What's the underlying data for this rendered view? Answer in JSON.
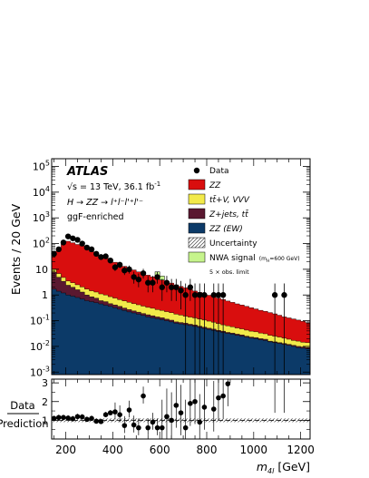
{
  "chart_data": {
    "type": "area",
    "xlabel_base": "m",
    "xlabel_sub": "4l",
    "xlabel_unit": "[GeV]",
    "ylabel": "Events / 20 GeV",
    "ratio_ylabel_top": "Data",
    "ratio_ylabel_bottom": "Prediction",
    "log_y": true,
    "xlim": [
      140,
      1240
    ],
    "ylim": [
      0.0008,
      200000
    ],
    "ratio_ylim": [
      0,
      3.2
    ],
    "x_ticks": [
      200,
      400,
      600,
      800,
      1000,
      1200
    ],
    "y_ticks": [
      {
        "v": 0.001,
        "label": "10",
        "exp": "-3"
      },
      {
        "v": 0.01,
        "label": "10",
        "exp": "-2"
      },
      {
        "v": 0.1,
        "label": "10",
        "exp": "-1"
      },
      {
        "v": 1,
        "label": "1",
        "exp": ""
      },
      {
        "v": 10,
        "label": "10",
        "exp": ""
      },
      {
        "v": 100,
        "label": "10",
        "exp": "2"
      },
      {
        "v": 1000,
        "label": "10",
        "exp": "3"
      },
      {
        "v": 10000,
        "label": "10",
        "exp": "4"
      },
      {
        "v": 100000,
        "label": "10",
        "exp": "5"
      }
    ],
    "ratio_y_ticks": [
      1,
      2,
      3
    ],
    "annotations": {
      "experiment": "ATLAS",
      "energy_prefix": "√s = 13 TeV, 36.1 fb",
      "energy_exp": "-1",
      "process": "H → ZZ → l⁺l⁻l'⁺l'⁻",
      "category": "ggF-enriched"
    },
    "legend": {
      "placement": "top-right",
      "data": "Data",
      "zz": "ZZ",
      "ttv": "tt̄+V, VVV",
      "zjets": "Z+jets, tt̄",
      "zzew": "ZZ (EW)",
      "uncertainty": "Uncertainty",
      "nwa": "NWA signal",
      "nwa_mass": "(m",
      "nwa_mass_sub": "H",
      "nwa_mass_end": "=600 GeV)",
      "nwa_limit": "5 × obs. limit"
    },
    "colors": {
      "zz": "#d90e0e",
      "ttv": "#f2ea4a",
      "zjets": "#5a1830",
      "zzew": "#0c3a68",
      "nwa": "#c6f48c",
      "data": "#000000"
    },
    "bin_edges": [
      140,
      160,
      180,
      200,
      220,
      240,
      260,
      280,
      300,
      320,
      340,
      360,
      380,
      400,
      420,
      440,
      460,
      480,
      500,
      520,
      540,
      560,
      580,
      600,
      620,
      640,
      660,
      680,
      700,
      720,
      740,
      760,
      780,
      800,
      820,
      840,
      860,
      880,
      900,
      920,
      940,
      960,
      980,
      1000,
      1020,
      1040,
      1060,
      1080,
      1100,
      1120,
      1140,
      1160,
      1180,
      1200,
      1220,
      1240
    ],
    "series": [
      {
        "name": "ZZ (EW)",
        "values": [
          1.7,
          1.4,
          1.2,
          1.0,
          0.9,
          0.8,
          0.7,
          0.6,
          0.55,
          0.5,
          0.45,
          0.4,
          0.36,
          0.32,
          0.28,
          0.25,
          0.22,
          0.2,
          0.18,
          0.16,
          0.14,
          0.13,
          0.12,
          0.11,
          0.1,
          0.09,
          0.08,
          0.075,
          0.07,
          0.065,
          0.06,
          0.055,
          0.05,
          0.046,
          0.042,
          0.038,
          0.035,
          0.032,
          0.03,
          0.027,
          0.025,
          0.023,
          0.021,
          0.02,
          0.018,
          0.017,
          0.015,
          0.014,
          0.013,
          0.012,
          0.011,
          0.01,
          0.009,
          0.0085,
          0.008
        ]
      },
      {
        "name": "Z+jets, tt̄",
        "values": [
          6.0,
          3.5,
          2.2,
          1.4,
          1.1,
          0.8,
          0.6,
          0.4,
          0.3,
          0.25,
          0.15,
          0.15,
          0.1,
          0.09,
          0.08,
          0.06,
          0.05,
          0.04,
          0.035,
          0.03,
          0.03,
          0.025,
          0.02,
          0.02,
          0.015,
          0.015,
          0.01,
          0.01,
          0.01,
          0.008,
          0.008,
          0.006,
          0.006,
          0.005,
          0.005,
          0.004,
          0.004,
          0.003,
          0.003,
          0.003,
          0.003,
          0.002,
          0.002,
          0.002,
          0.002,
          0.002,
          0.001,
          0.001,
          0.001,
          0.001,
          0.001,
          0.001,
          0.001,
          0.001,
          0.001
        ]
      },
      {
        "name": "tt̄+V, VVV",
        "values": [
          2.5,
          1.9,
          1.4,
          1.1,
          1.0,
          0.9,
          0.75,
          0.7,
          0.6,
          0.55,
          0.5,
          0.45,
          0.4,
          0.35,
          0.3,
          0.28,
          0.25,
          0.22,
          0.2,
          0.18,
          0.16,
          0.15,
          0.13,
          0.12,
          0.11,
          0.1,
          0.09,
          0.08,
          0.07,
          0.065,
          0.06,
          0.055,
          0.05,
          0.045,
          0.04,
          0.035,
          0.03,
          0.028,
          0.025,
          0.022,
          0.02,
          0.018,
          0.016,
          0.015,
          0.013,
          0.012,
          0.011,
          0.01,
          0.009,
          0.008,
          0.007,
          0.006,
          0.006,
          0.005,
          0.005
        ]
      },
      {
        "name": "ZZ",
        "values": [
          40,
          60,
          100,
          120,
          105,
          90,
          80,
          60,
          47,
          40,
          32,
          27,
          22,
          18,
          15,
          12.5,
          10.5,
          9,
          7.5,
          6.5,
          5.6,
          4.8,
          4.2,
          3.6,
          3.1,
          2.7,
          2.3,
          2.0,
          1.75,
          1.5,
          1.3,
          1.15,
          1.0,
          0.88,
          0.77,
          0.68,
          0.6,
          0.52,
          0.46,
          0.4,
          0.36,
          0.32,
          0.28,
          0.25,
          0.22,
          0.2,
          0.18,
          0.16,
          0.14,
          0.12,
          0.11,
          0.1,
          0.09,
          0.08,
          0.07
        ]
      }
    ],
    "nwa_signal": {
      "x_range": [
        580,
        620
      ],
      "values": [
        3.5,
        1.6
      ]
    },
    "data_points": [
      {
        "x": 150,
        "y": 40
      },
      {
        "x": 170,
        "y": 60
      },
      {
        "x": 190,
        "y": 110
      },
      {
        "x": 210,
        "y": 190
      },
      {
        "x": 230,
        "y": 160
      },
      {
        "x": 250,
        "y": 140
      },
      {
        "x": 270,
        "y": 100
      },
      {
        "x": 290,
        "y": 70
      },
      {
        "x": 310,
        "y": 60
      },
      {
        "x": 330,
        "y": 40
      },
      {
        "x": 350,
        "y": 30
      },
      {
        "x": 370,
        "y": 32
      },
      {
        "x": 390,
        "y": 22
      },
      {
        "x": 410,
        "y": 12
      },
      {
        "x": 430,
        "y": 15
      },
      {
        "x": 450,
        "y": 9
      },
      {
        "x": 470,
        "y": 10
      },
      {
        "x": 490,
        "y": 5
      },
      {
        "x": 510,
        "y": 4
      },
      {
        "x": 530,
        "y": 7
      },
      {
        "x": 550,
        "y": 3
      },
      {
        "x": 570,
        "y": 3
      },
      {
        "x": 590,
        "y": 5
      },
      {
        "x": 610,
        "y": 2
      },
      {
        "x": 630,
        "y": 3
      },
      {
        "x": 650,
        "y": 2
      },
      {
        "x": 670,
        "y": 2
      },
      {
        "x": 690,
        "y": 1.5
      },
      {
        "x": 710,
        "y": 1
      },
      {
        "x": 730,
        "y": 2
      },
      {
        "x": 750,
        "y": 1
      },
      {
        "x": 770,
        "y": 1
      },
      {
        "x": 790,
        "y": 1
      },
      {
        "x": 830,
        "y": 1
      },
      {
        "x": 850,
        "y": 1
      },
      {
        "x": 870,
        "y": 1
      },
      {
        "x": 1090,
        "y": 1
      },
      {
        "x": 1130,
        "y": 1
      }
    ],
    "ratio_points": [
      {
        "x": 150,
        "y": 1.1
      },
      {
        "x": 170,
        "y": 1.15
      },
      {
        "x": 190,
        "y": 1.15
      },
      {
        "x": 210,
        "y": 1.12
      },
      {
        "x": 230,
        "y": 1.08
      },
      {
        "x": 250,
        "y": 1.2
      },
      {
        "x": 270,
        "y": 1.18
      },
      {
        "x": 290,
        "y": 1.05
      },
      {
        "x": 310,
        "y": 1.1
      },
      {
        "x": 330,
        "y": 0.95
      },
      {
        "x": 350,
        "y": 0.93
      },
      {
        "x": 370,
        "y": 1.3
      },
      {
        "x": 390,
        "y": 1.4
      },
      {
        "x": 410,
        "y": 1.45
      },
      {
        "x": 430,
        "y": 1.3
      },
      {
        "x": 450,
        "y": 0.72
      },
      {
        "x": 470,
        "y": 1.55
      },
      {
        "x": 490,
        "y": 0.75
      },
      {
        "x": 510,
        "y": 0.6
      },
      {
        "x": 530,
        "y": 2.3
      },
      {
        "x": 550,
        "y": 0.6
      },
      {
        "x": 570,
        "y": 0.9
      },
      {
        "x": 590,
        "y": 0.6
      },
      {
        "x": 610,
        "y": 0.6
      },
      {
        "x": 630,
        "y": 1.2
      },
      {
        "x": 650,
        "y": 1.0
      },
      {
        "x": 670,
        "y": 1.8
      },
      {
        "x": 690,
        "y": 1.4
      },
      {
        "x": 710,
        "y": 0.6
      },
      {
        "x": 730,
        "y": 1.9
      },
      {
        "x": 750,
        "y": 2.0
      },
      {
        "x": 770,
        "y": 0.9
      },
      {
        "x": 790,
        "y": 1.7
      },
      {
        "x": 830,
        "y": 1.6
      },
      {
        "x": 850,
        "y": 2.2
      },
      {
        "x": 870,
        "y": 2.3
      },
      {
        "x": 890,
        "y": 2.95
      }
    ]
  }
}
